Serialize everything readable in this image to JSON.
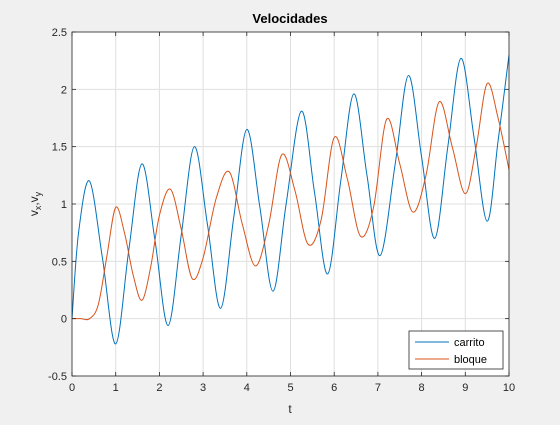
{
  "chart_data": {
    "type": "line",
    "title": "Velocidades",
    "xlabel": "t",
    "ylabel": {
      "base1": "v",
      "sub1": "x",
      "sep": ",",
      "base2": "v",
      "sub2": "y"
    },
    "xlim": [
      0,
      10
    ],
    "ylim": [
      -0.5,
      2.5
    ],
    "xticks": [
      "0",
      "1",
      "2",
      "3",
      "4",
      "5",
      "6",
      "7",
      "8",
      "9",
      "10"
    ],
    "yticks": [
      "-0.5",
      "0",
      "0.5",
      "1",
      "1.5",
      "2",
      "2.5"
    ],
    "grid": true,
    "legend_position": "bottom-right",
    "series": [
      {
        "name": "carrito",
        "color": "#0072BD",
        "x": [
          0,
          0.15,
          0.4,
          0.7,
          1.0,
          1.3,
          1.6,
          1.9,
          2.2,
          2.5,
          2.8,
          3.1,
          3.4,
          3.7,
          4.0,
          4.3,
          4.6,
          4.9,
          5.25,
          5.55,
          5.85,
          6.15,
          6.45,
          6.75,
          7.05,
          7.4,
          7.7,
          8.0,
          8.3,
          8.6,
          8.9,
          9.2,
          9.5,
          9.75,
          10.0
        ],
        "y": [
          0.0,
          0.75,
          1.2,
          0.52,
          -0.22,
          0.6,
          1.35,
          0.68,
          -0.06,
          0.73,
          1.5,
          0.82,
          0.09,
          0.88,
          1.65,
          0.97,
          0.24,
          1.0,
          1.81,
          1.1,
          0.39,
          1.2,
          1.96,
          1.25,
          0.55,
          1.36,
          2.12,
          1.41,
          0.7,
          1.5,
          2.27,
          1.58,
          0.85,
          1.55,
          2.3
        ]
      },
      {
        "name": "bloque",
        "color": "#D95319",
        "x": [
          0,
          0.2,
          0.4,
          0.6,
          0.8,
          1.0,
          1.2,
          1.4,
          1.6,
          1.8,
          2.0,
          2.25,
          2.5,
          2.75,
          3.0,
          3.3,
          3.6,
          3.9,
          4.2,
          4.5,
          4.8,
          5.1,
          5.4,
          5.7,
          6.0,
          6.3,
          6.6,
          6.9,
          7.2,
          7.5,
          7.8,
          8.1,
          8.4,
          8.7,
          9.0,
          9.25,
          9.5,
          9.75,
          10.0
        ],
        "y": [
          0.0,
          0.0,
          0.0,
          0.12,
          0.55,
          0.97,
          0.75,
          0.38,
          0.16,
          0.45,
          0.9,
          1.13,
          0.78,
          0.35,
          0.53,
          1.05,
          1.28,
          0.82,
          0.46,
          0.82,
          1.43,
          1.12,
          0.65,
          0.86,
          1.58,
          1.22,
          0.72,
          0.97,
          1.74,
          1.35,
          0.93,
          1.25,
          1.89,
          1.5,
          1.09,
          1.5,
          2.05,
          1.75,
          1.3
        ]
      }
    ]
  }
}
